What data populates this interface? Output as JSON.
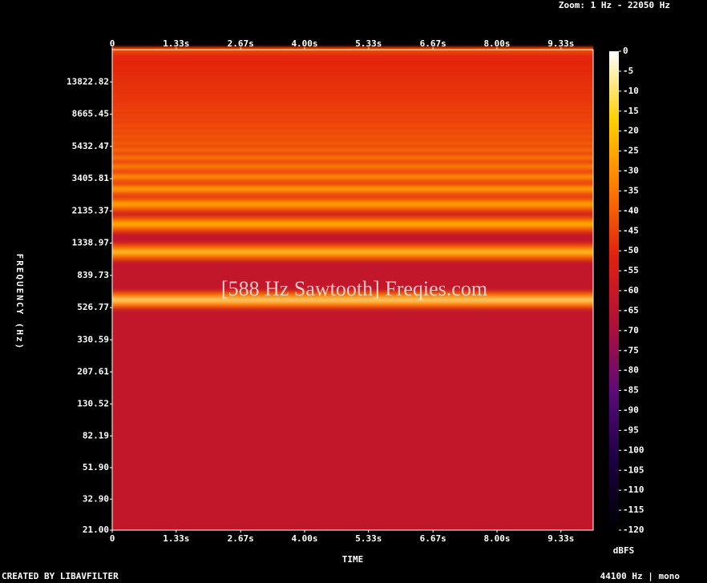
{
  "chart_data": {
    "type": "spectrogram",
    "header": "Zoom: 1 Hz - 22050 Hz",
    "title": "[588 Hz Sawtooth] Freqies.com",
    "footer_left": "CREATED BY LIBAVFILTER",
    "footer_right": "44100 Hz | mono",
    "xlabel": "TIME",
    "ylabel": "FREQUENCY (Hz)",
    "colorbar_label": "dBFS",
    "xlim": [
      0,
      10
    ],
    "xticks": [
      0,
      {
        "value": 1.33,
        "label": "1.33s"
      },
      {
        "value": 2.67,
        "label": "2.67s"
      },
      {
        "value": 4.0,
        "label": "4.00s"
      },
      {
        "value": 5.33,
        "label": "5.33s"
      },
      {
        "value": 6.67,
        "label": "6.67s"
      },
      {
        "value": 8.0,
        "label": "8.00s"
      },
      {
        "value": 9.33,
        "label": "9.33s"
      }
    ],
    "ylim": [
      21,
      22050
    ],
    "yscale": "log",
    "yticks": [
      {
        "value": 21,
        "label": "21.00"
      },
      {
        "value": 32.9,
        "label": "32.90"
      },
      {
        "value": 51.9,
        "label": "51.90"
      },
      {
        "value": 82.19,
        "label": "82.19"
      },
      {
        "value": 130.52,
        "label": "130.52"
      },
      {
        "value": 207.61,
        "label": "207.61"
      },
      {
        "value": 330.59,
        "label": "330.59"
      },
      {
        "value": 526.77,
        "label": "526.77"
      },
      {
        "value": 839.73,
        "label": "839.73"
      },
      {
        "value": 1338.97,
        "label": "1338.97"
      },
      {
        "value": 2135.37,
        "label": "2135.37"
      },
      {
        "value": 3405.81,
        "label": "3405.81"
      },
      {
        "value": 5432.47,
        "label": "5432.47"
      },
      {
        "value": 8665.45,
        "label": "8665.45"
      },
      {
        "value": 13822.82,
        "label": "13822.82"
      }
    ],
    "clim": [
      -120,
      0
    ],
    "cticks": [
      0,
      -5,
      -10,
      -15,
      -20,
      -25,
      -30,
      -35,
      -40,
      -45,
      -50,
      -55,
      -60,
      -65,
      -70,
      -75,
      -80,
      -85,
      -90,
      -95,
      -100,
      -105,
      -110,
      -115,
      -120
    ],
    "colormap": [
      "#000000",
      "#1a0040",
      "#5a0a7a",
      "#b0103a",
      "#e02010",
      "#ff7a00",
      "#ffd000",
      "#ffffff"
    ],
    "floor_level": -62,
    "harmonics": {
      "frequencies": [
        588,
        1176,
        1764,
        2352,
        2940,
        3528,
        4116,
        4704,
        5292,
        5880,
        6468,
        7056,
        7644,
        8232,
        8820,
        9408,
        9996,
        10584,
        11172,
        11760,
        12348,
        12936,
        13524,
        14112,
        14700,
        15288,
        15876,
        16464,
        17052,
        17640,
        18228,
        18816,
        19404,
        19992,
        20580,
        21168,
        21756
      ],
      "levels": [
        -8,
        -14,
        -18,
        -20,
        -22,
        -24,
        -25,
        -26,
        -27,
        -28,
        -29,
        -30,
        -30,
        -31,
        -32,
        -32,
        -33,
        -33,
        -34,
        -34,
        -34,
        -35,
        -35,
        -36,
        -36,
        -36,
        -37,
        -37,
        -37,
        -38,
        -38,
        -38,
        -39,
        -39,
        -39,
        -39,
        -40
      ]
    }
  }
}
